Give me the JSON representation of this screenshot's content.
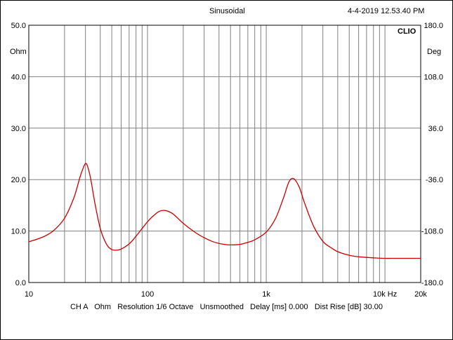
{
  "header": {
    "mode": "Sinusoidal",
    "timestamp": "4-4-2019 12.53.40 PM",
    "brand": "CLIO"
  },
  "footer": {
    "text": "CH A   Ohm   Resolution 1/6 Octave   Unsmoothed   Delay [ms] 0.000   Dist Rise [dB] 30.00"
  },
  "chart_data": {
    "type": "line",
    "title": "",
    "xlabel": "",
    "ylabel": "Ohm",
    "y2label": "Deg",
    "xscale": "log",
    "xlim": [
      10,
      20000
    ],
    "ylim": [
      0,
      50
    ],
    "y2lim": [
      -180,
      180
    ],
    "grid": true,
    "x_tick_labels": [
      "10",
      "100",
      "1k",
      "10k Hz",
      "20k"
    ],
    "x_tick_values": [
      10,
      100,
      1000,
      10000,
      20000
    ],
    "y_tick_labels": [
      "0.0",
      "10.0",
      "20.0",
      "30.0",
      "40.0",
      "50.0"
    ],
    "y_tick_values": [
      0,
      10,
      20,
      30,
      40,
      50
    ],
    "y2_tick_labels": [
      "-180.0",
      "-108.0",
      "-36.0",
      "36.0",
      "108.0",
      "180.0"
    ],
    "series": [
      {
        "color": "#cc0000",
        "x": [
          10,
          13,
          16,
          20,
          24,
          27,
          29,
          30,
          31,
          33,
          36,
          40,
          45,
          50,
          55,
          60,
          70,
          80,
          90,
          100,
          110,
          125,
          140,
          160,
          180,
          200,
          250,
          300,
          350,
          400,
          450,
          500,
          600,
          700,
          800,
          1000,
          1200,
          1400,
          1550,
          1700,
          1900,
          2100,
          2500,
          3000,
          3500,
          4000,
          5000,
          6000,
          8000,
          10000,
          12000,
          15000,
          20000
        ],
        "y": [
          7.9,
          8.8,
          10.0,
          12.5,
          16.5,
          20.5,
          22.5,
          23.1,
          22.8,
          20.5,
          15.5,
          10.5,
          7.5,
          6.4,
          6.3,
          6.5,
          7.5,
          9.0,
          10.5,
          11.8,
          12.8,
          13.8,
          14.0,
          13.5,
          12.5,
          11.5,
          9.8,
          8.7,
          8.0,
          7.6,
          7.4,
          7.3,
          7.4,
          7.8,
          8.3,
          9.8,
          12.5,
          16.5,
          19.5,
          20.2,
          18.5,
          15.5,
          11.0,
          8.0,
          6.8,
          6.0,
          5.3,
          5.0,
          4.8,
          4.7,
          4.7,
          4.7,
          4.7
        ]
      }
    ]
  }
}
